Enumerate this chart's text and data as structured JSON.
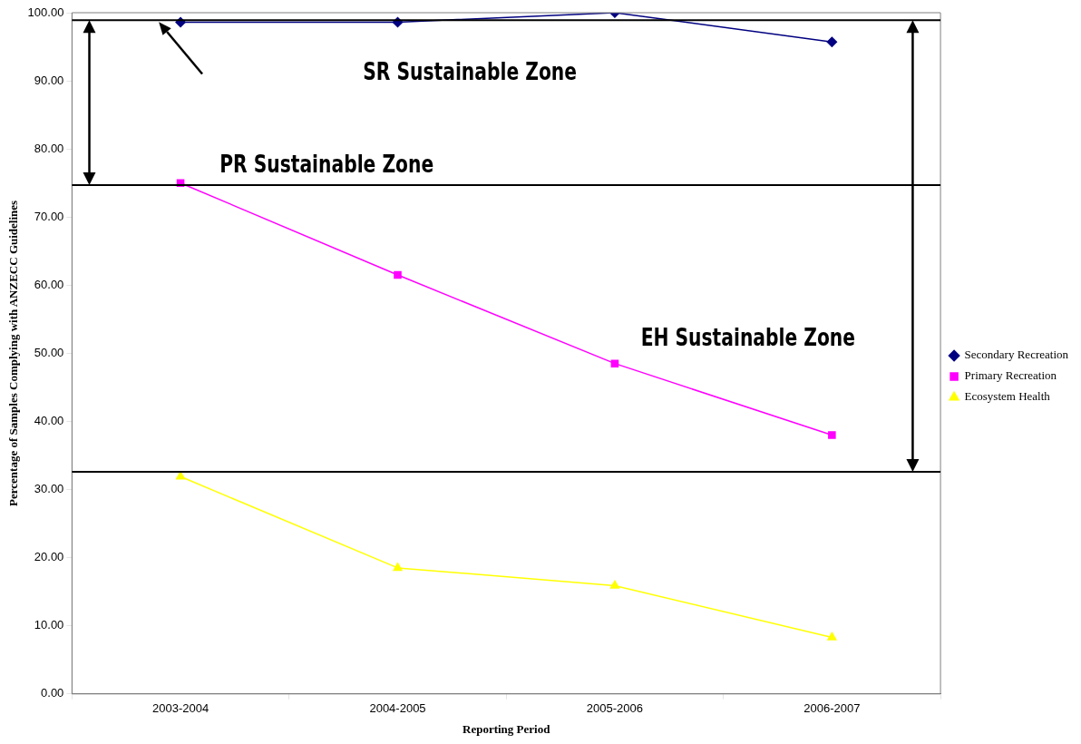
{
  "chart_data": {
    "type": "line",
    "xlabel": "Reporting Period",
    "ylabel": "Percentage of Samples Complying with ANZECC Guidelines",
    "categories": [
      "2003-2004",
      "2004-2005",
      "2005-2006",
      "2006-2007"
    ],
    "series": [
      {
        "name": "Secondary Recreation",
        "color": "#000080",
        "marker": "diamond",
        "values": [
          98.6,
          98.6,
          100,
          95.7
        ]
      },
      {
        "name": "Primary Recreation",
        "color": "#ff00ff",
        "marker": "square",
        "values": [
          75.0,
          61.5,
          48.5,
          38.0
        ]
      },
      {
        "name": "Ecosystem Health",
        "color": "#ffff00",
        "marker": "triangle",
        "values": [
          31.9,
          18.5,
          15.9,
          8.3
        ]
      }
    ],
    "ylim": [
      0,
      100
    ],
    "yticks": [
      {
        "value": 0,
        "label": "0.00"
      },
      {
        "value": 10,
        "label": "10.00"
      },
      {
        "value": 20,
        "label": "20.00"
      },
      {
        "value": 30,
        "label": "30.00"
      },
      {
        "value": 40,
        "label": "40.00"
      },
      {
        "value": 50,
        "label": "50.00"
      },
      {
        "value": 60,
        "label": "60.00"
      },
      {
        "value": 70,
        "label": "70.00"
      },
      {
        "value": 80,
        "label": "80.00"
      },
      {
        "value": 90,
        "label": "90.00"
      },
      {
        "value": 100,
        "label": "100.00"
      }
    ],
    "ref_lines": [
      {
        "axis": "y",
        "value": 98.9,
        "color": "#000000"
      },
      {
        "axis": "y",
        "value": 74.7,
        "color": "#000000"
      },
      {
        "axis": "y",
        "value": 32.6,
        "color": "#000000"
      }
    ],
    "annotations": [
      "SR Sustainable Zone",
      "PR Sustainable Zone",
      "EH Sustainable Zone"
    ],
    "grid": false,
    "legend": "right",
    "line_style": "solid"
  }
}
